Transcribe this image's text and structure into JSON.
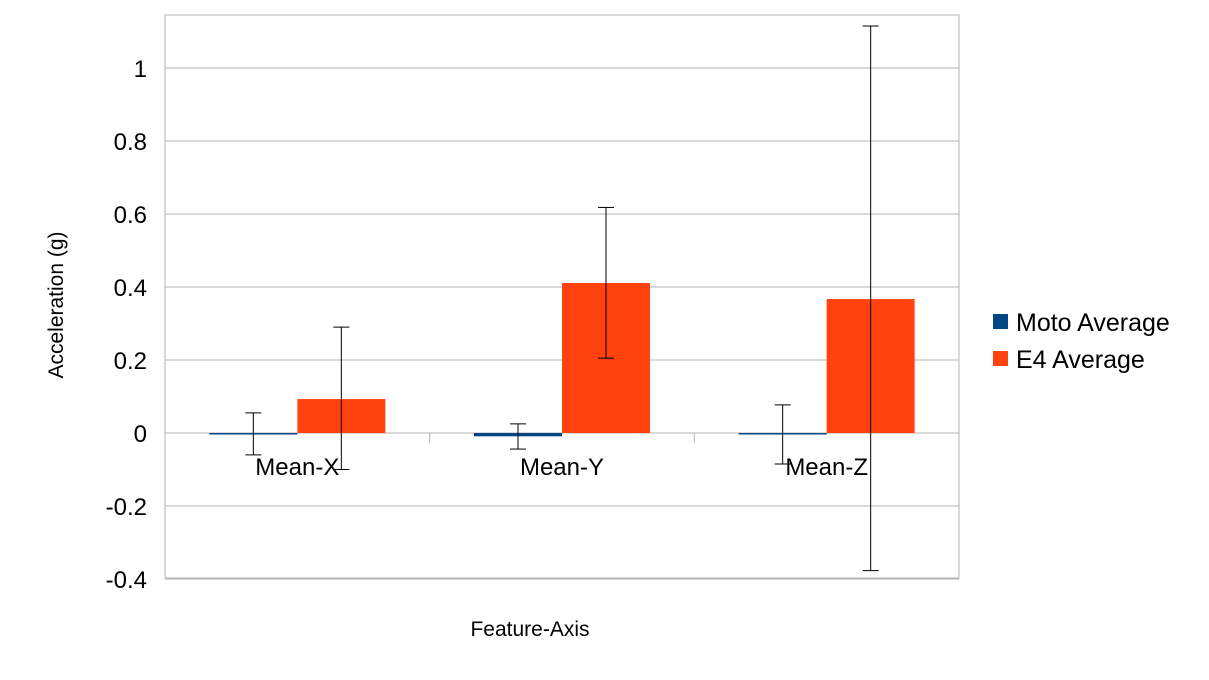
{
  "chart_data": {
    "type": "bar",
    "title": "",
    "xlabel": "Feature-Axis",
    "ylabel": "Acceleration (g)",
    "ylim": [
      -0.4,
      1.15
    ],
    "yticks": [
      -0.4,
      -0.2,
      0,
      0.2,
      0.4,
      0.6,
      0.8,
      1
    ],
    "ytick_labels": [
      "-0.4",
      "-0.2",
      "0",
      "0.2",
      "0.4",
      "0.6",
      "0.8",
      "1"
    ],
    "grid": true,
    "legend_position": "right",
    "categories": [
      "Mean-X",
      "Mean-Y",
      "Mean-Z"
    ],
    "series": [
      {
        "name": "Moto Average",
        "color": "#004586",
        "values": [
          -0.003,
          -0.009,
          -0.004
        ],
        "error_low": [
          -0.06,
          -0.044,
          -0.085
        ],
        "error_high": [
          0.055,
          0.025,
          0.077
        ]
      },
      {
        "name": "E4 Average",
        "color": "#ff420e",
        "values": [
          0.093,
          0.411,
          0.367
        ],
        "error_low": [
          -0.1,
          0.205,
          -0.377
        ],
        "error_high": [
          0.29,
          0.618,
          1.115
        ]
      }
    ]
  }
}
